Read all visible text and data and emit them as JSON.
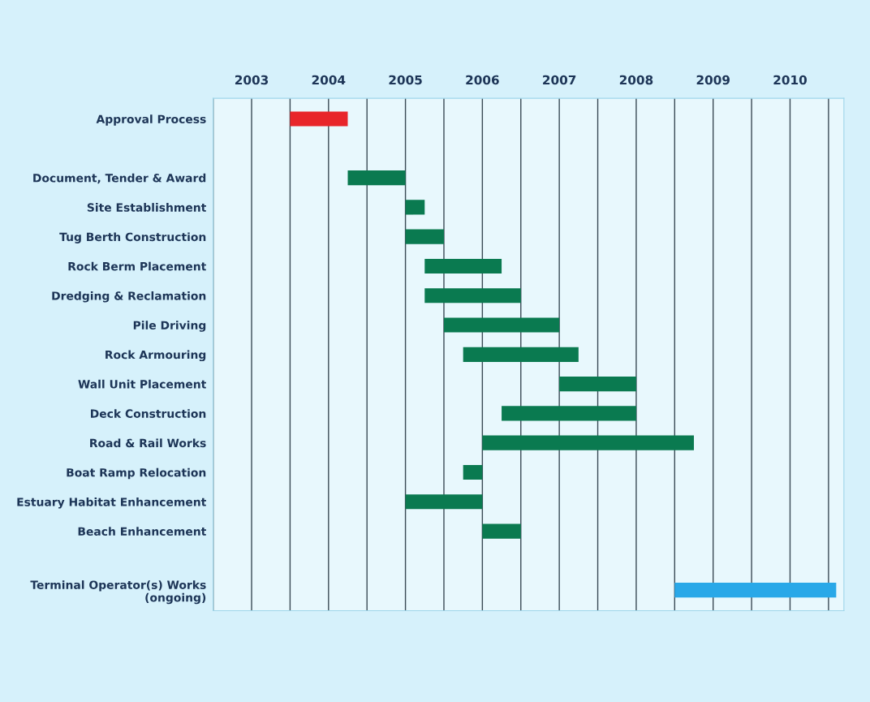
{
  "chart_data": {
    "type": "bar",
    "orientation": "horizontal",
    "categories": [
      "Approval Process",
      null,
      "Document, Tender & Award",
      "Site Establishment",
      "Tug Berth Construction",
      "Rock Berm Placement",
      "Dredging & Reclamation",
      "Pile Driving",
      "Rock Armouring",
      "Wall Unit Placement",
      "Deck Construction",
      "Road & Rail Works",
      "Boat Ramp Relocation",
      "Estuary Habitat Enhancement",
      "Beach Enhancement",
      null,
      "Terminal Operator(s) Works\n(ongoing)"
    ],
    "base": [
      2004.0,
      null,
      2004.75,
      2005.5,
      2005.5,
      2005.75,
      2005.75,
      2006.0,
      2006.25,
      2007.5,
      2006.75,
      2006.5,
      2006.25,
      2005.5,
      2006.5,
      null,
      2009.0
    ],
    "values": [
      0.75,
      null,
      0.75,
      0.25,
      0.5,
      1.0,
      1.25,
      1.5,
      1.5,
      1.0,
      1.75,
      2.75,
      0.25,
      1.0,
      0.5,
      null,
      2.1
    ],
    "colors": [
      "#e8252a",
      null,
      "#0a7a50",
      "#0a7a50",
      "#0a7a50",
      "#0a7a50",
      "#0a7a50",
      "#0a7a50",
      "#0a7a50",
      "#0a7a50",
      "#0a7a50",
      "#0a7a50",
      "#0a7a50",
      "#0a7a50",
      "#0a7a50",
      null,
      "#29a8e8"
    ],
    "xlim": [
      2003,
      2011.2
    ],
    "xticks": [
      {
        "value": 2003,
        "label": null
      },
      {
        "value": 2003.5,
        "label": "2003"
      },
      {
        "value": 2004,
        "label": null
      },
      {
        "value": 2004.5,
        "label": "2004"
      },
      {
        "value": 2005,
        "label": null
      },
      {
        "value": 2005.5,
        "label": "2005"
      },
      {
        "value": 2006,
        "label": null
      },
      {
        "value": 2006.5,
        "label": "2006"
      },
      {
        "value": 2007,
        "label": null
      },
      {
        "value": 2007.5,
        "label": "2007"
      },
      {
        "value": 2008,
        "label": null
      },
      {
        "value": 2008.5,
        "label": "2008"
      },
      {
        "value": 2009,
        "label": null
      },
      {
        "value": 2009.5,
        "label": "2009"
      },
      {
        "value": 2010,
        "label": null
      },
      {
        "value": 2010.5,
        "label": "2010"
      },
      {
        "value": 2011,
        "label": null
      }
    ],
    "grid": "x"
  }
}
